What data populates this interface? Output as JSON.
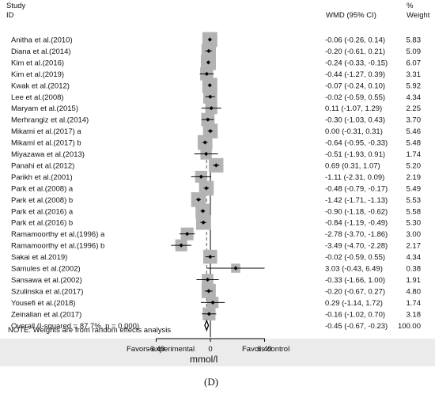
{
  "chart_data": {
    "type": "forest",
    "headers": {
      "study_line1": "Study",
      "study_line2": "ID",
      "effect": "WMD (95% CI)",
      "weight_line1": "%",
      "weight_line2": "Weight"
    },
    "studies": [
      {
        "id": "Anitha et al.(2010)",
        "est": -0.06,
        "lo": -0.26,
        "hi": 0.14,
        "ci": "-0.06 (-0.26, 0.14)",
        "weight": "5.83",
        "w": 5.83
      },
      {
        "id": "Diana et al.(2014)",
        "est": -0.2,
        "lo": -0.61,
        "hi": 0.21,
        "ci": "-0.20 (-0.61, 0.21)",
        "weight": "5.09",
        "w": 5.09
      },
      {
        "id": "Kim et al.(2016)",
        "est": -0.24,
        "lo": -0.33,
        "hi": -0.15,
        "ci": "-0.24 (-0.33, -0.15)",
        "weight": "6.07",
        "w": 6.07
      },
      {
        "id": "Kim et al.(2019)",
        "est": -0.44,
        "lo": -1.27,
        "hi": 0.39,
        "ci": "-0.44 (-1.27, 0.39)",
        "weight": "3.31",
        "w": 3.31
      },
      {
        "id": "Kwak et al.(2012)",
        "est": -0.07,
        "lo": -0.24,
        "hi": 0.1,
        "ci": "-0.07 (-0.24, 0.10)",
        "weight": "5.92",
        "w": 5.92
      },
      {
        "id": "Lee et al.(2008)",
        "est": -0.02,
        "lo": -0.59,
        "hi": 0.55,
        "ci": "-0.02 (-0.59, 0.55)",
        "weight": "4.34",
        "w": 4.34
      },
      {
        "id": "Maryam et al.(2015)",
        "est": 0.11,
        "lo": -1.07,
        "hi": 1.29,
        "ci": "0.11 (-1.07, 1.29)",
        "weight": "2.25",
        "w": 2.25
      },
      {
        "id": "Merhrangiz et al.(2014)",
        "est": -0.3,
        "lo": -1.03,
        "hi": 0.43,
        "ci": "-0.30 (-1.03, 0.43)",
        "weight": "3.70",
        "w": 3.7
      },
      {
        "id": "Mikami et al.(2017) a",
        "est": 0.0,
        "lo": -0.31,
        "hi": 0.31,
        "ci": "0.00 (-0.31, 0.31)",
        "weight": "5.46",
        "w": 5.46
      },
      {
        "id": "Mikami et al.(2017) b",
        "est": -0.64,
        "lo": -0.95,
        "hi": -0.33,
        "ci": "-0.64 (-0.95, -0.33)",
        "weight": "5.48",
        "w": 5.48
      },
      {
        "id": "Miyazawa et al.(2013)",
        "est": -0.51,
        "lo": -1.93,
        "hi": 0.91,
        "ci": "-0.51 (-1.93, 0.91)",
        "weight": "1.74",
        "w": 1.74
      },
      {
        "id": "Panahi et al.(2012)",
        "est": 0.69,
        "lo": 0.31,
        "hi": 1.07,
        "ci": "0.69 (0.31, 1.07)",
        "weight": "5.20",
        "w": 5.2
      },
      {
        "id": "Parikh et al.(2001)",
        "est": -1.11,
        "lo": -2.31,
        "hi": 0.09,
        "ci": "-1.11 (-2.31, 0.09)",
        "weight": "2.19",
        "w": 2.19
      },
      {
        "id": "Park et al.(2008) a",
        "est": -0.48,
        "lo": -0.79,
        "hi": -0.17,
        "ci": "-0.48 (-0.79, -0.17)",
        "weight": "5.49",
        "w": 5.49
      },
      {
        "id": "Park et al.(2008) b",
        "est": -1.42,
        "lo": -1.71,
        "hi": -1.13,
        "ci": "-1.42 (-1.71, -1.13)",
        "weight": "5.53",
        "w": 5.53
      },
      {
        "id": "Park et al.(2016) a",
        "est": -0.9,
        "lo": -1.18,
        "hi": -0.62,
        "ci": "-0.90 (-1.18, -0.62)",
        "weight": "5.58",
        "w": 5.58
      },
      {
        "id": "Park et al.(2016) b",
        "est": -0.84,
        "lo": -1.19,
        "hi": -0.49,
        "ci": "-0.84 (-1.19, -0.49)",
        "weight": "5.30",
        "w": 5.3
      },
      {
        "id": "Ramamoorthy et al.(1996) a",
        "est": -2.78,
        "lo": -3.7,
        "hi": -1.86,
        "ci": "-2.78 (-3.70, -1.86)",
        "weight": "3.00",
        "w": 3.0
      },
      {
        "id": "Ramamoorthy et al.(1996) b",
        "est": -3.49,
        "lo": -4.7,
        "hi": -2.28,
        "ci": "-3.49 (-4.70, -2.28)",
        "weight": "2.17",
        "w": 2.17
      },
      {
        "id": "Sakai et al.2019)",
        "est": -0.02,
        "lo": -0.59,
        "hi": 0.55,
        "ci": "-0.02 (-0.59, 0.55)",
        "weight": "4.34",
        "w": 4.34
      },
      {
        "id": "Samules et al.(2002)",
        "est": 3.03,
        "lo": -0.43,
        "hi": 6.49,
        "ci": "3.03 (-0.43, 6.49)",
        "weight": "0.38",
        "w": 0.38
      },
      {
        "id": "Sansawa et al.(2002)",
        "est": -0.33,
        "lo": -1.66,
        "hi": 1.0,
        "ci": "-0.33 (-1.66, 1.00)",
        "weight": "1.91",
        "w": 1.91
      },
      {
        "id": "Szulinska et al.(2017)",
        "est": -0.2,
        "lo": -0.67,
        "hi": 0.27,
        "ci": "-0.20 (-0.67, 0.27)",
        "weight": "4.80",
        "w": 4.8
      },
      {
        "id": "Yousefi et al.(2018)",
        "est": 0.29,
        "lo": -1.14,
        "hi": 1.72,
        "ci": "0.29 (-1.14, 1.72)",
        "weight": "1.74",
        "w": 1.74
      },
      {
        "id": "Zeinalian et al.(2017)",
        "est": -0.16,
        "lo": -1.02,
        "hi": 0.7,
        "ci": "-0.16 (-1.02, 0.70)",
        "weight": "3.18",
        "w": 3.18
      }
    ],
    "overall": {
      "id": "Overall  (I-squared = 87.7%, p = 0.000)",
      "est": -0.45,
      "lo": -0.67,
      "hi": -0.23,
      "ci": "-0.45 (-0.67, -0.23)",
      "weight": "100.00"
    },
    "note": "NOTE: Weights are from random effects analysis",
    "axis": {
      "ticks": [
        -6.49,
        0,
        6.49
      ],
      "tick_labels": [
        "-6.49",
        "0",
        "6.49"
      ],
      "range": [
        -6.49,
        6.49
      ],
      "left_label": "Favors experimental",
      "right_label": "Favors control",
      "unit": "mmol/l"
    },
    "panel_label": "(D)",
    "colors": {
      "box": "#b3b3b3",
      "footer": "#ebebeb",
      "line": "#000000"
    }
  }
}
